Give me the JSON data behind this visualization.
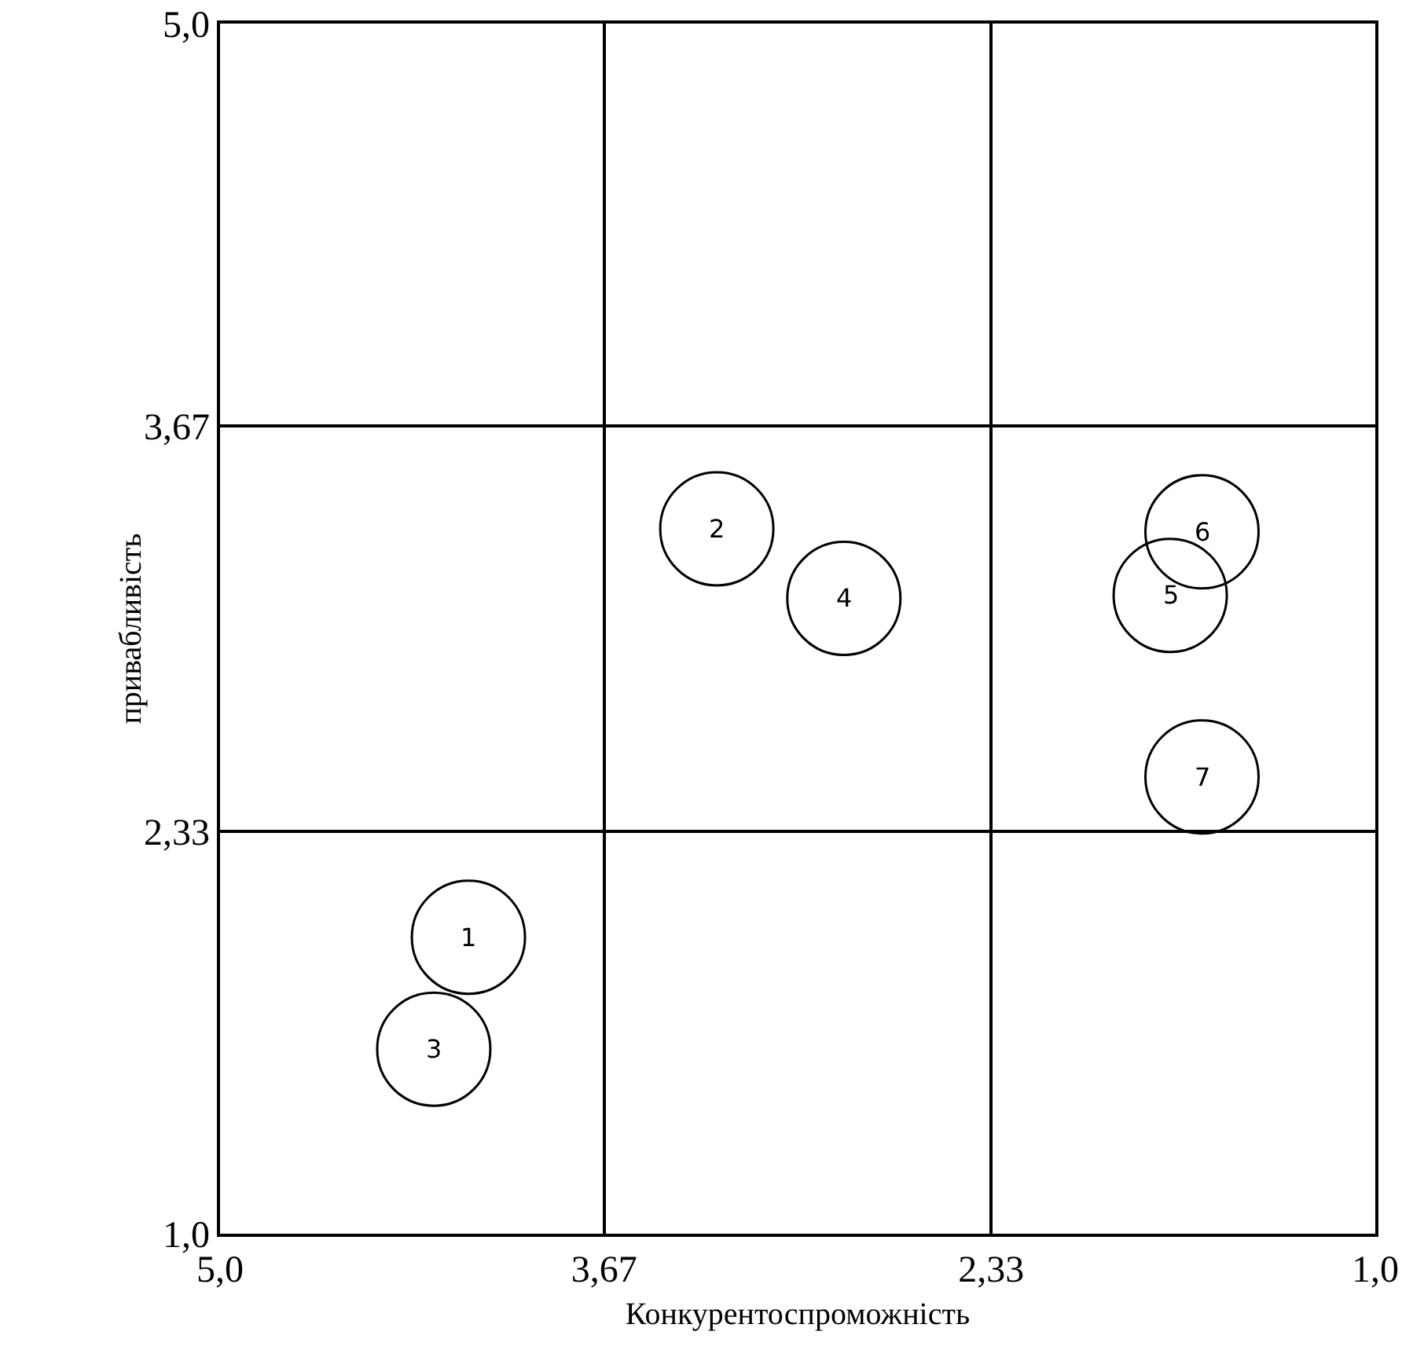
{
  "chart_data": {
    "type": "scatter",
    "xlabel": "Конкурентоспроможність",
    "ylabel": "привабливість",
    "x": [
      4.14,
      3.28,
      4.26,
      2.84,
      1.71,
      1.6,
      1.6
    ],
    "series": [
      {
        "color": "#000000",
        "values": [
          1.98,
          3.33,
          1.61,
          3.1,
          3.11,
          3.32,
          2.51
        ]
      }
    ],
    "annotations": [
      {
        "text": "1",
        "x": 4.14,
        "y": 1.98
      },
      {
        "text": "2",
        "x": 3.28,
        "y": 3.33
      },
      {
        "text": "3",
        "x": 4.26,
        "y": 1.61
      },
      {
        "text": "4",
        "x": 2.84,
        "y": 3.1
      },
      {
        "text": "5",
        "x": 1.71,
        "y": 3.11
      },
      {
        "text": "6",
        "x": 1.6,
        "y": 3.32
      },
      {
        "text": "7",
        "x": 1.6,
        "y": 2.51
      }
    ],
    "xlim": [
      5,
      1
    ],
    "xticks": [
      {
        "value": 5,
        "label": "5,0"
      },
      {
        "value": 3.67,
        "label": "3,67"
      },
      {
        "value": 2.33,
        "label": "2,33"
      },
      {
        "value": 1,
        "label": "1,0"
      }
    ],
    "ylim": [
      1,
      5
    ],
    "yticks": [
      {
        "value": 1,
        "label": "1,0"
      },
      {
        "value": 2.33,
        "label": "2,33"
      },
      {
        "value": 3.67,
        "label": "3,67"
      },
      {
        "value": 5,
        "label": "5,0"
      }
    ],
    "grid": true,
    "marker": "circle"
  }
}
